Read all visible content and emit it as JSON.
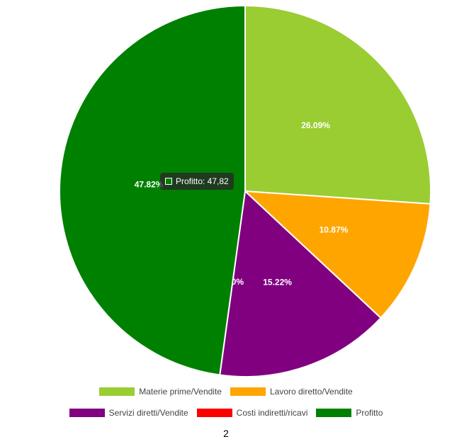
{
  "chart_data": {
    "type": "pie",
    "slices": [
      {
        "label": "Materie prime/Vendite",
        "value": 26.09,
        "display": "26.09%",
        "color": "#9acd32"
      },
      {
        "label": "Lavoro diretto/Vendite",
        "value": 10.87,
        "display": "10.87%",
        "color": "#ffa500"
      },
      {
        "label": "Servizi diretti/Vendite",
        "value": 15.22,
        "display": "15.22%",
        "color": "#800080"
      },
      {
        "label": "Costi indiretti/ricavi",
        "value": 0.0,
        "display": "0.00%",
        "color": "#ff0000"
      },
      {
        "label": "Profitto",
        "value": 47.82,
        "display": "47.82%",
        "color": "#008000"
      }
    ],
    "legend": {
      "rows": [
        [
          "Materie prime/Vendite",
          "Lavoro diretto/Vendite"
        ],
        [
          "Servizi diretti/Vendite",
          "Costi indiretti/ricavi",
          "Profitto"
        ]
      ],
      "placement": "bottom"
    },
    "tooltip": {
      "text": "Profitto: 47,82",
      "color": "#008000"
    }
  },
  "page": {
    "number": "2"
  }
}
